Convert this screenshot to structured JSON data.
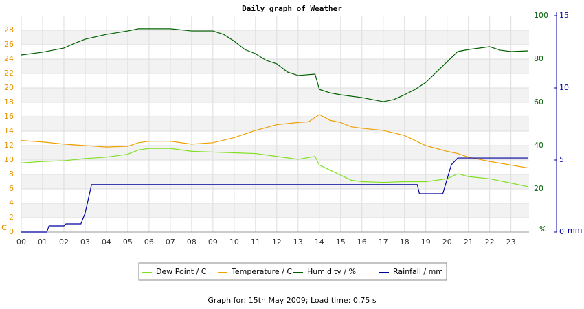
{
  "chart_data": {
    "type": "line",
    "title": "Daily graph of Weather",
    "footer": "Graph for: 15th May 2009; Load time: 0.75 s",
    "y_label": "C",
    "y2_label": "%",
    "y3_label": "mm",
    "xlim": [
      0,
      23.85
    ],
    "xticks": [
      {
        "value": 0,
        "label": "00"
      },
      {
        "value": 1,
        "label": "01"
      },
      {
        "value": 2,
        "label": "02"
      },
      {
        "value": 3,
        "label": "03"
      },
      {
        "value": 4,
        "label": "04"
      },
      {
        "value": 5,
        "label": "05"
      },
      {
        "value": 6,
        "label": "06"
      },
      {
        "value": 7,
        "label": "07"
      },
      {
        "value": 8,
        "label": "08"
      },
      {
        "value": 9,
        "label": "09"
      },
      10,
      11,
      12,
      13,
      14,
      15,
      16,
      17,
      18,
      19,
      20,
      21,
      22,
      23
    ],
    "ylim": [
      0,
      30
    ],
    "yticks": [
      0,
      2,
      4,
      6,
      8,
      10,
      12,
      14,
      16,
      18,
      20,
      22,
      24,
      26,
      28
    ],
    "y2lim": [
      0,
      100
    ],
    "y2ticks": [
      20,
      40,
      60,
      80,
      100
    ],
    "y3lim": [
      0,
      15
    ],
    "y3ticks": [
      0,
      5,
      10,
      15
    ],
    "grid": true,
    "legend": "bottom",
    "series": [
      {
        "name": "Dew Point / C",
        "color": "#80e020",
        "x": [
          0,
          1,
          2,
          3,
          4,
          5,
          5.5,
          6,
          7,
          8,
          9,
          10,
          11,
          12,
          13,
          13.8,
          14,
          14.5,
          15,
          15.5,
          16,
          17,
          18,
          19,
          20,
          20.5,
          21,
          22,
          23,
          23.8
        ],
        "values": [
          9.6,
          9.8,
          9.9,
          10.2,
          10.4,
          10.8,
          11.4,
          11.6,
          11.6,
          11.2,
          11.1,
          11.0,
          10.9,
          10.5,
          10.1,
          10.5,
          9.3,
          8.6,
          7.9,
          7.2,
          7.0,
          6.9,
          7.0,
          7.0,
          7.4,
          8.1,
          7.7,
          7.4,
          6.8,
          6.3
        ]
      },
      {
        "name": "Temperature / C",
        "color": "#f0a000",
        "x": [
          0,
          1,
          2,
          3,
          4,
          5,
          5.5,
          6,
          7,
          8,
          9,
          10,
          11,
          12,
          13,
          13.5,
          14,
          14.5,
          15,
          15.5,
          16,
          17,
          18,
          18.5,
          19,
          20,
          20.5,
          21,
          22,
          23,
          23.8
        ],
        "values": [
          12.7,
          12.5,
          12.2,
          12.0,
          11.8,
          11.9,
          12.4,
          12.6,
          12.6,
          12.2,
          12.4,
          13.1,
          14.1,
          14.9,
          15.2,
          15.3,
          16.3,
          15.5,
          15.2,
          14.6,
          14.4,
          14.1,
          13.4,
          12.7,
          12.0,
          11.2,
          10.9,
          10.4,
          9.8,
          9.3,
          8.9
        ]
      },
      {
        "name": "Humidity / %",
        "color": "#006000",
        "axis": "y2",
        "x": [
          0,
          1,
          2,
          2.5,
          3,
          4,
          5,
          5.5,
          6,
          7,
          8,
          9,
          9.5,
          10,
          10.5,
          11,
          11.5,
          12,
          12.5,
          13,
          13.8,
          14,
          14.5,
          15,
          16,
          17,
          17.5,
          18,
          18.5,
          19,
          19.5,
          20,
          20.5,
          21,
          22,
          22.5,
          23,
          23.8
        ],
        "values": [
          81.9,
          83.2,
          85.1,
          87.3,
          89.2,
          91.4,
          93.0,
          94.0,
          94.0,
          94.0,
          93.0,
          93.0,
          91.4,
          88.3,
          84.4,
          82.5,
          79.4,
          77.8,
          74.0,
          72.4,
          73.0,
          66.0,
          64.4,
          63.5,
          62.2,
          60.3,
          61.3,
          63.5,
          66.0,
          69.2,
          74.0,
          78.7,
          83.5,
          84.4,
          85.7,
          84.1,
          83.5,
          83.8
        ]
      },
      {
        "name": "Rainfall / mm",
        "color": "#0000a0",
        "axis": "y3",
        "x": [
          0,
          1.2,
          1.3,
          2,
          2.1,
          2.8,
          3,
          3.3,
          18.6,
          18.7,
          19.8,
          20.2,
          20.5,
          23.8
        ],
        "values": [
          0,
          0,
          0.43,
          0.43,
          0.57,
          0.57,
          1.33,
          3.29,
          3.29,
          2.67,
          2.67,
          4.67,
          5.14,
          5.14
        ]
      }
    ]
  }
}
